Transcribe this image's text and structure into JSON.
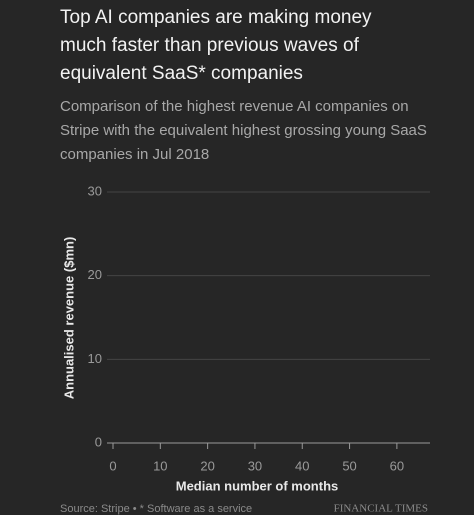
{
  "chart_data": {
    "type": "line",
    "title": "Top AI companies are making money much faster than previous waves of equivalent SaaS* companies",
    "subtitle": "Comparison of the highest revenue AI companies on Stripe with the equivalent highest grossing young SaaS companies in Jul 2018",
    "xlabel": "Median number of months",
    "ylabel": "Annualised revenue ($mn)",
    "xlim": [
      0,
      67
    ],
    "xticks": [
      0,
      10,
      20,
      30,
      40,
      50,
      60
    ],
    "ylim": [
      0,
      30
    ],
    "yticks": [
      0,
      10,
      20,
      30
    ],
    "grid": true,
    "source": "Source: Stripe • * Software as a service",
    "brand": "FINANCIAL TIMES"
  }
}
